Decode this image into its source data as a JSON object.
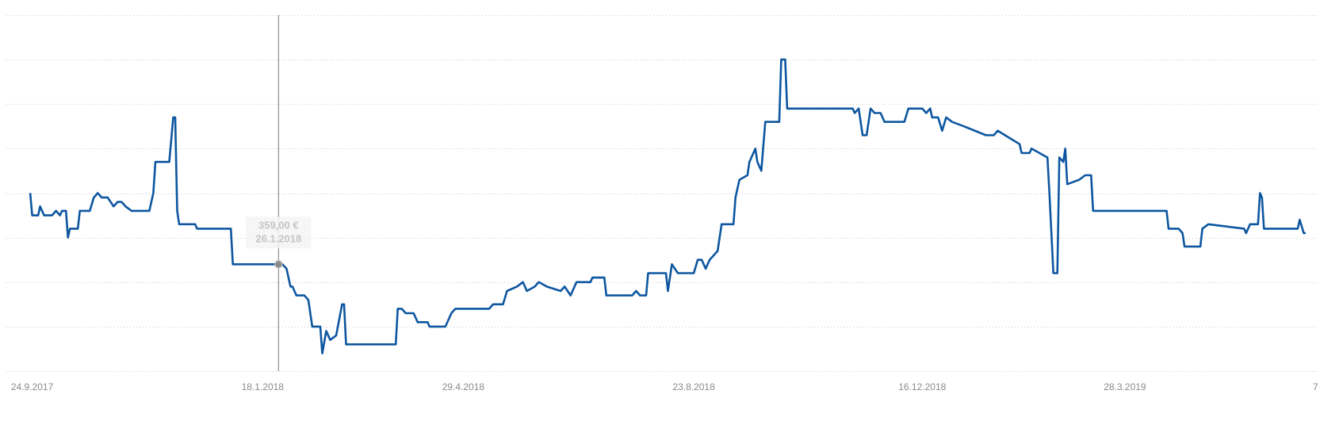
{
  "chart_data": {
    "type": "line",
    "color": "#0d56a0",
    "x": [
      "2017-09-23",
      "2017-09-24",
      "2017-09-27",
      "2017-09-28",
      "2017-09-30",
      "2017-10-04",
      "2017-10-06",
      "2017-10-08",
      "2017-10-09",
      "2017-10-11",
      "2017-10-12",
      "2017-10-13",
      "2017-10-17",
      "2017-10-18",
      "2017-10-23",
      "2017-10-25",
      "2017-10-27",
      "2017-10-29",
      "2017-11-01",
      "2017-11-04",
      "2017-11-06",
      "2017-11-08",
      "2017-11-10",
      "2017-11-13",
      "2017-11-22",
      "2017-11-24",
      "2017-11-25",
      "2017-12-02",
      "2017-12-04",
      "2017-12-05",
      "2017-12-06",
      "2017-12-07",
      "2017-12-15",
      "2017-12-16",
      "2018-01-02",
      "2018-01-03",
      "2018-01-28",
      "2018-01-30",
      "2018-02-01",
      "2018-02-02",
      "2018-02-04",
      "2018-02-08",
      "2018-02-10",
      "2018-02-12",
      "2018-02-16",
      "2018-02-17",
      "2018-02-19",
      "2018-02-21",
      "2018-02-24",
      "2018-02-27",
      "2018-02-28",
      "2018-03-01",
      "2018-03-05",
      "2018-03-26",
      "2018-03-27",
      "2018-03-29",
      "2018-03-31",
      "2018-04-04",
      "2018-04-06",
      "2018-04-11",
      "2018-04-12",
      "2018-04-20",
      "2018-04-23",
      "2018-04-25",
      "2018-05-12",
      "2018-05-14",
      "2018-05-19",
      "2018-05-21",
      "2018-05-26",
      "2018-05-29",
      "2018-05-31",
      "2018-06-04",
      "2018-06-06",
      "2018-06-10",
      "2018-06-17",
      "2018-06-19",
      "2018-06-22",
      "2018-06-25",
      "2018-07-02",
      "2018-07-03",
      "2018-07-09",
      "2018-07-10",
      "2018-07-23",
      "2018-07-25",
      "2018-07-27",
      "2018-07-30",
      "2018-07-31",
      "2018-08-09",
      "2018-08-10",
      "2018-08-12",
      "2018-08-15",
      "2018-08-23",
      "2018-08-25",
      "2018-08-27",
      "2018-08-29",
      "2018-08-31",
      "2018-09-04",
      "2018-09-06",
      "2018-09-12",
      "2018-09-13",
      "2018-09-15",
      "2018-09-19",
      "2018-09-20",
      "2018-09-23",
      "2018-09-24",
      "2018-09-26",
      "2018-09-28",
      "2018-10-05",
      "2018-10-06",
      "2018-10-08",
      "2018-10-09",
      "2018-11-11",
      "2018-11-12",
      "2018-11-14",
      "2018-11-16",
      "2018-11-18",
      "2018-11-20",
      "2018-11-22",
      "2018-11-25",
      "2018-11-27",
      "2018-12-07",
      "2018-12-09",
      "2018-12-16",
      "2018-12-18",
      "2018-12-20",
      "2018-12-21",
      "2018-12-24",
      "2018-12-26",
      "2018-12-28",
      "2018-12-31",
      "2019-01-06",
      "2019-01-17",
      "2019-01-21",
      "2019-01-23",
      "2019-02-03",
      "2019-02-04",
      "2019-02-08",
      "2019-02-09",
      "2019-02-17",
      "2019-02-18",
      "2019-02-20",
      "2019-02-22",
      "2019-02-23",
      "2019-02-25",
      "2019-02-26",
      "2019-02-27",
      "2019-03-05",
      "2019-03-08",
      "2019-03-11",
      "2019-03-12",
      "2019-04-18",
      "2019-04-19",
      "2019-04-24",
      "2019-04-26",
      "2019-04-27",
      "2019-05-05",
      "2019-05-06",
      "2019-05-09",
      "2019-05-27",
      "2019-05-28",
      "2019-05-30",
      "2019-06-03",
      "2019-06-04",
      "2019-06-05",
      "2019-06-06",
      "2019-06-17",
      "2019-06-23",
      "2019-06-24",
      "2019-06-26",
      "2019-06-27"
    ],
    "values": [
      375,
      370,
      370,
      372,
      370,
      370,
      371,
      370,
      371,
      371,
      365,
      367,
      367,
      371,
      371,
      374,
      375,
      374,
      374,
      372,
      373,
      373,
      372,
      371,
      371,
      375,
      382,
      382,
      392,
      392,
      371,
      368,
      368,
      367,
      367,
      359,
      359,
      358,
      354,
      354,
      352,
      352,
      351,
      345,
      345,
      339,
      344,
      342,
      343,
      350,
      350,
      341,
      341,
      341,
      349,
      349,
      348,
      348,
      346,
      346,
      345,
      345,
      348,
      349,
      349,
      350,
      350,
      353,
      354,
      355,
      353,
      354,
      355,
      354,
      353,
      354,
      352,
      355,
      355,
      356,
      356,
      352,
      352,
      353,
      352,
      352,
      357,
      357,
      353,
      359,
      357,
      357,
      360,
      360,
      358,
      360,
      362,
      368,
      368,
      374,
      378,
      379,
      382,
      385,
      382,
      380,
      391,
      391,
      405,
      405,
      394,
      394,
      393,
      394,
      388,
      388,
      394,
      393,
      393,
      391,
      391,
      394,
      394,
      393,
      394,
      392,
      392,
      389,
      392,
      391,
      390,
      388,
      388,
      389,
      386,
      384,
      384,
      385,
      383,
      375,
      357,
      357,
      383,
      382,
      385,
      377,
      378,
      379,
      379,
      371,
      371,
      367,
      367,
      366,
      363,
      363,
      367,
      368,
      367,
      366,
      368,
      368,
      375,
      374,
      367,
      367,
      367,
      369,
      366,
      366
    ],
    "xlim": [
      "2017-09-11",
      "2019-07-03"
    ],
    "xticks": [
      {
        "value": "2017-09-24",
        "label": "24.9.2017"
      },
      {
        "value": "2018-01-18",
        "label": "18.1.2018"
      },
      {
        "value": "2018-04-29",
        "label": "29.4.2018"
      },
      {
        "value": "2018-08-23",
        "label": "23.8.2018"
      },
      {
        "value": "2018-12-16",
        "label": "16.12.2018"
      },
      {
        "value": "2019-03-28",
        "label": "28.3.2019"
      },
      {
        "value": "2019-07-07",
        "label": "7"
      }
    ],
    "ylim": [
      335,
      415
    ],
    "yticks": [
      335,
      345,
      355,
      365,
      375,
      385,
      395,
      405,
      415
    ],
    "grid": true,
    "hover": {
      "x": "2018-01-26",
      "value": 359,
      "value_label": "359,00 €",
      "x_label": "26.1.2018"
    }
  }
}
